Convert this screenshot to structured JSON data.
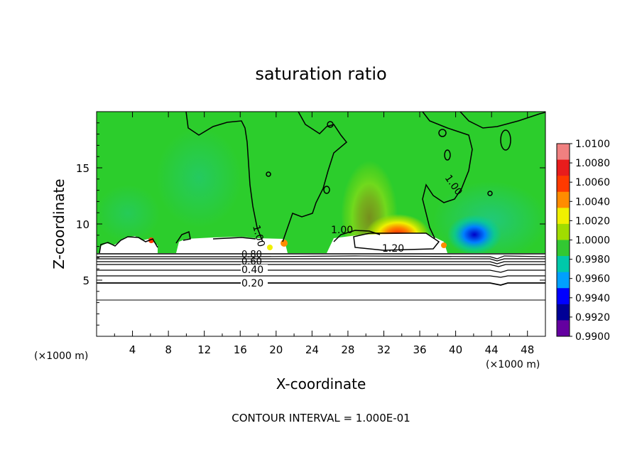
{
  "chart_data": {
    "type": "heatmap",
    "title": "saturation ratio",
    "xlabel": "X-coordinate",
    "ylabel": "Z-coordinate",
    "x_unit_left": "(×1000 m)",
    "x_unit_right": "(×1000 m)",
    "footer": "CONTOUR INTERVAL = 1.000E-01",
    "xlim": [
      0,
      50
    ],
    "ylim": [
      0,
      20
    ],
    "x_ticks": [
      "4",
      "8",
      "12",
      "16",
      "20",
      "24",
      "28",
      "32",
      "36",
      "40",
      "44",
      "48"
    ],
    "y_ticks": [
      "5",
      "10",
      "15"
    ],
    "colorbar": {
      "labels": [
        "1.0100",
        "1.0080",
        "1.0060",
        "1.0040",
        "1.0020",
        "1.0000",
        "0.9980",
        "0.9960",
        "0.9940",
        "0.9920",
        "0.9900"
      ],
      "colors": [
        "#f08080",
        "#e81c1c",
        "#ff3a00",
        "#ff8c00",
        "#f0f000",
        "#a0dc00",
        "#32c832",
        "#00c8aa",
        "#00a0ff",
        "#0000ff",
        "#000096",
        "#6400a0"
      ]
    },
    "contour_labels": [
      "0.20",
      "0.40",
      "0.60",
      "0.80",
      "1.00",
      "1.00",
      "1.00",
      "1.20"
    ],
    "colors": {
      "background": "#ffffff",
      "field": "#2ccd2c",
      "contour": "#000000"
    }
  }
}
